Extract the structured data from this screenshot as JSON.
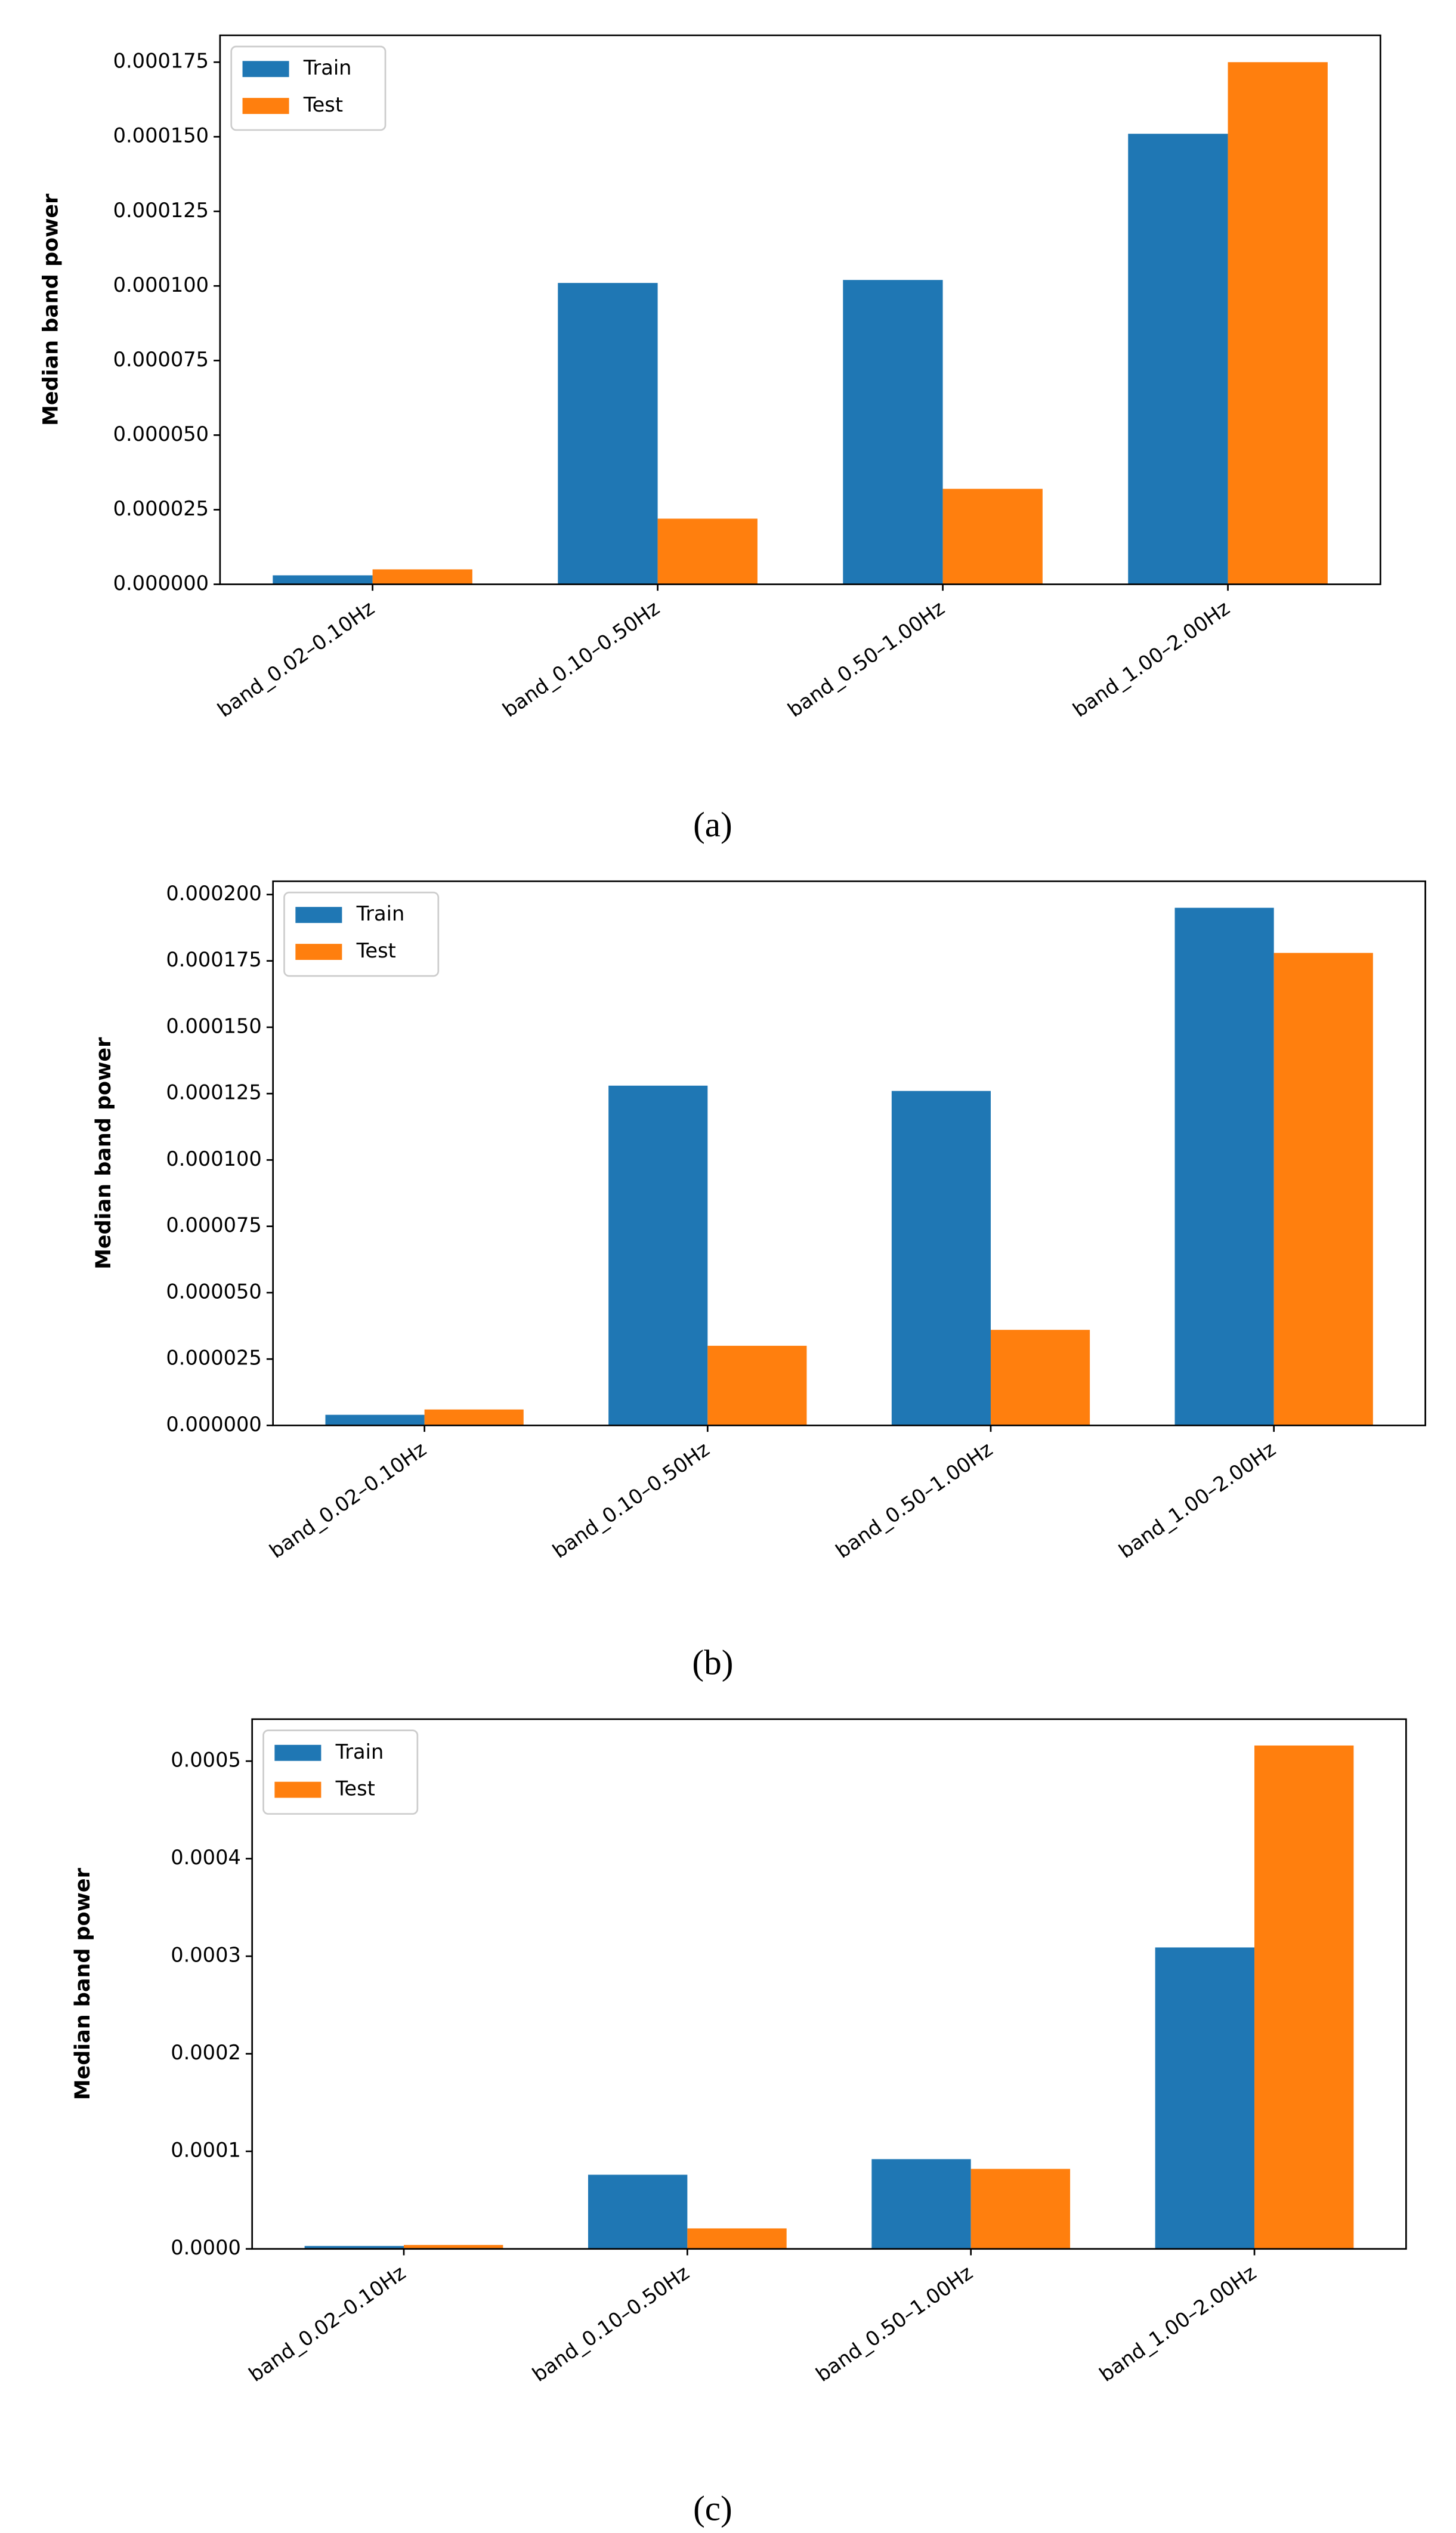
{
  "chart_data": [
    {
      "type": "bar",
      "caption": "(a)",
      "ylabel": "Median band power",
      "categories": [
        "band_0.02–0.10Hz",
        "band_0.10–0.50Hz",
        "band_0.50–1.00Hz",
        "band_1.00–2.00Hz"
      ],
      "series": [
        {
          "name": "Train",
          "color": "#1f77b4",
          "values": [
            3e-06,
            0.000101,
            0.000102,
            0.000151
          ]
        },
        {
          "name": "Test",
          "color": "#ff7f0e",
          "values": [
            5e-06,
            2.2e-05,
            3.2e-05,
            0.000175
          ]
        }
      ],
      "ylim": [
        0,
        0.000184
      ],
      "yticks": [
        {
          "value": 0,
          "label": "0.000000"
        },
        {
          "value": 2.5e-05,
          "label": "0.000025"
        },
        {
          "value": 5e-05,
          "label": "0.000050"
        },
        {
          "value": 7.5e-05,
          "label": "0.000075"
        },
        {
          "value": 0.0001,
          "label": "0.000100"
        },
        {
          "value": 0.000125,
          "label": "0.000125"
        },
        {
          "value": 0.00015,
          "label": "0.000150"
        },
        {
          "value": 0.000175,
          "label": "0.000175"
        }
      ],
      "legend": "upper left"
    },
    {
      "type": "bar",
      "caption": "(b)",
      "ylabel": "Median band power",
      "categories": [
        "band_0.02–0.10Hz",
        "band_0.10–0.50Hz",
        "band_0.50–1.00Hz",
        "band_1.00–2.00Hz"
      ],
      "series": [
        {
          "name": "Train",
          "color": "#1f77b4",
          "values": [
            4e-06,
            0.000128,
            0.000126,
            0.000195
          ]
        },
        {
          "name": "Test",
          "color": "#ff7f0e",
          "values": [
            6e-06,
            3e-05,
            3.6e-05,
            0.000178
          ]
        }
      ],
      "ylim": [
        0,
        0.000205
      ],
      "yticks": [
        {
          "value": 0,
          "label": "0.000000"
        },
        {
          "value": 2.5e-05,
          "label": "0.000025"
        },
        {
          "value": 5e-05,
          "label": "0.000050"
        },
        {
          "value": 7.5e-05,
          "label": "0.000075"
        },
        {
          "value": 0.0001,
          "label": "0.000100"
        },
        {
          "value": 0.000125,
          "label": "0.000125"
        },
        {
          "value": 0.00015,
          "label": "0.000150"
        },
        {
          "value": 0.000175,
          "label": "0.000175"
        },
        {
          "value": 0.0002,
          "label": "0.000200"
        }
      ],
      "legend": "upper left"
    },
    {
      "type": "bar",
      "caption": "(c)",
      "ylabel": "Median band power",
      "categories": [
        "band_0.02–0.10Hz",
        "band_0.10–0.50Hz",
        "band_0.50–1.00Hz",
        "band_1.00–2.00Hz"
      ],
      "series": [
        {
          "name": "Train",
          "color": "#1f77b4",
          "values": [
            3e-06,
            7.6e-05,
            9.2e-05,
            0.000309
          ]
        },
        {
          "name": "Test",
          "color": "#ff7f0e",
          "values": [
            4e-06,
            2.1e-05,
            8.2e-05,
            0.000516
          ]
        }
      ],
      "ylim": [
        0,
        0.000543
      ],
      "yticks": [
        {
          "value": 0,
          "label": "0.0000"
        },
        {
          "value": 0.0001,
          "label": "0.0001"
        },
        {
          "value": 0.0002,
          "label": "0.0002"
        },
        {
          "value": 0.0003,
          "label": "0.0003"
        },
        {
          "value": 0.0004,
          "label": "0.0004"
        },
        {
          "value": 0.0005,
          "label": "0.0005"
        }
      ],
      "legend": "upper left"
    }
  ]
}
